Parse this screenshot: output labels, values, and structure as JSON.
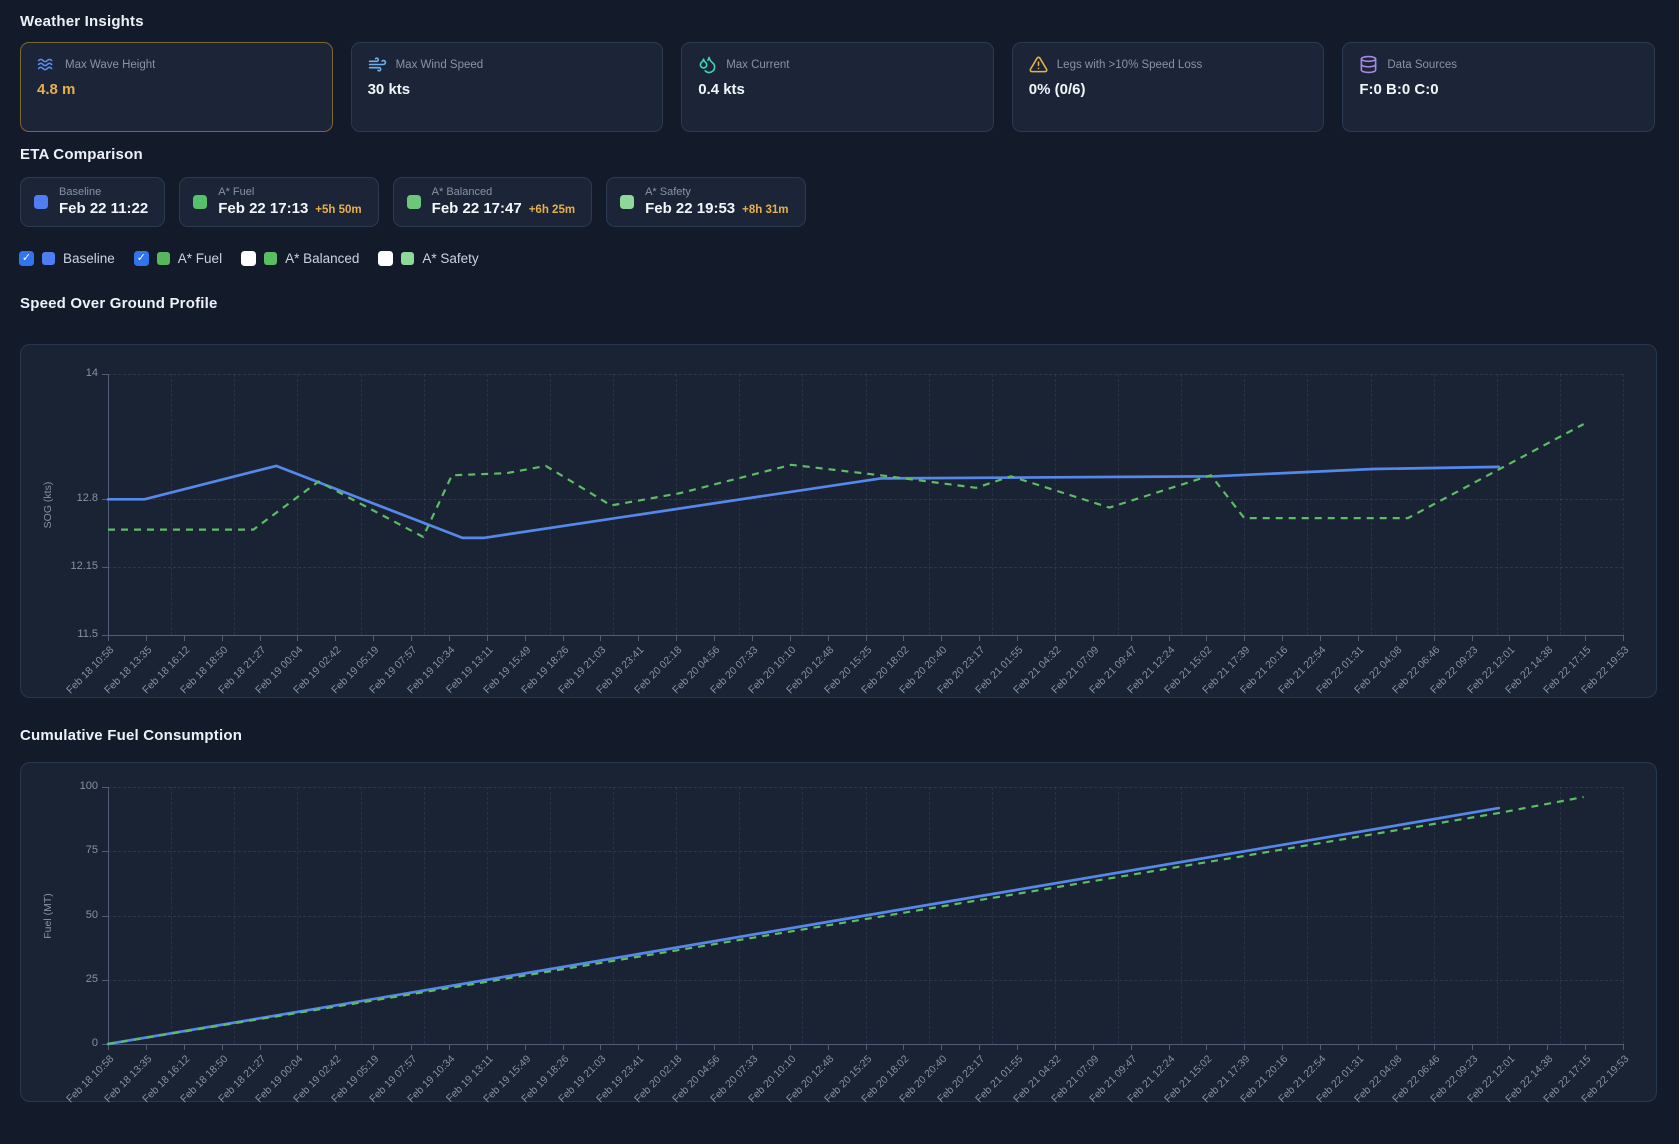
{
  "weather_insights": {
    "title": "Weather Insights",
    "cards": [
      {
        "icon": "waves-icon",
        "icon_color": "#5b8def",
        "label": "Max Wave Height",
        "value": "4.8 m",
        "accent": "#e7b04d",
        "accent_border": "#7d6731"
      },
      {
        "icon": "wind-icon",
        "icon_color": "#6cb2e8",
        "label": "Max Wind Speed",
        "value": "30 kts"
      },
      {
        "icon": "droplets-icon",
        "icon_color": "#3dd6b4",
        "label": "Max Current",
        "value": "0.4 kts"
      },
      {
        "icon": "warning-icon",
        "icon_color": "#e7b04d",
        "label": "Legs with >10% Speed Loss",
        "value": "0% (0/6)"
      },
      {
        "icon": "database-icon",
        "icon_color": "#a78be0",
        "label": "Data Sources",
        "value": "F:0 B:0 C:0"
      }
    ]
  },
  "eta_comparison": {
    "title": "ETA Comparison",
    "cards": [
      {
        "label": "Baseline",
        "value": "Feb 22 11:22",
        "delta": "",
        "swatch": "#4f7df2"
      },
      {
        "label": "A* Fuel",
        "value": "Feb 22 17:13",
        "delta": "+5h 50m",
        "swatch": "#56c06a"
      },
      {
        "label": "A* Balanced",
        "value": "Feb 22 17:47",
        "delta": "+6h 25m",
        "swatch": "#6cc878"
      },
      {
        "label": "A* Safety",
        "value": "Feb 22 19:53",
        "delta": "+8h 31m",
        "swatch": "#8ed89a"
      }
    ],
    "legend_toggles": [
      {
        "label": "Baseline",
        "checked": true,
        "swatch": "#4f7df2"
      },
      {
        "label": "A* Fuel",
        "checked": true,
        "swatch": "#56b75e"
      },
      {
        "label": "A* Balanced",
        "checked": false,
        "swatch": "#5abd62"
      },
      {
        "label": "A* Safety",
        "checked": false,
        "swatch": "#8ed89a"
      }
    ]
  },
  "chart_data": [
    {
      "type": "line",
      "title": "Speed Over Ground Profile",
      "xlabel": "",
      "ylabel": "SOG (kts)",
      "ylim": [
        11.5,
        14
      ],
      "yticks": [
        11.5,
        12.15,
        12.8,
        14
      ],
      "grid": true,
      "legend_position": "none",
      "x_encoding": "fraction of x-axis span (0 = Feb 18 10:58, 1 = Feb 22 19:53)",
      "x_tick_labels": [
        "Feb 18 10:58",
        "Feb 18 13:35",
        "Feb 18 16:12",
        "Feb 18 18:50",
        "Feb 18 21:27",
        "Feb 19 00:04",
        "Feb 19 02:42",
        "Feb 19 05:19",
        "Feb 19 07:57",
        "Feb 19 10:34",
        "Feb 19 13:11",
        "Feb 19 15:49",
        "Feb 19 18:26",
        "Feb 19 21:03",
        "Feb 19 23:41",
        "Feb 20 02:18",
        "Feb 20 04:56",
        "Feb 20 07:33",
        "Feb 20 10:10",
        "Feb 20 12:48",
        "Feb 20 15:25",
        "Feb 20 18:02",
        "Feb 20 20:40",
        "Feb 20 23:17",
        "Feb 21 01:55",
        "Feb 21 04:32",
        "Feb 21 07:09",
        "Feb 21 09:47",
        "Feb 21 12:24",
        "Feb 21 15:02",
        "Feb 21 17:39",
        "Feb 21 20:16",
        "Feb 21 22:54",
        "Feb 22 01:31",
        "Feb 22 04:08",
        "Feb 22 06:46",
        "Feb 22 09:23",
        "Feb 22 12:01",
        "Feb 22 14:38",
        "Feb 22 17:15",
        "Feb 22 19:53"
      ],
      "series": [
        {
          "name": "Baseline",
          "color": "#5688ea",
          "dash": false,
          "points": [
            [
              0,
              12.8
            ],
            [
              0.024,
              12.8
            ],
            [
              0.111,
              13.12
            ],
            [
              0.234,
              12.43
            ],
            [
              0.248,
              12.43
            ],
            [
              0.51,
              13.0
            ],
            [
              0.73,
              13.02
            ],
            [
              0.835,
              13.09
            ],
            [
              0.918,
              13.11
            ]
          ]
        },
        {
          "name": "A* Fuel",
          "color": "#5dbd65",
          "dash": true,
          "points": [
            [
              0,
              12.51
            ],
            [
              0.096,
              12.51
            ],
            [
              0.139,
              12.97
            ],
            [
              0.208,
              12.44
            ],
            [
              0.227,
              13.03
            ],
            [
              0.263,
              13.05
            ],
            [
              0.289,
              13.12
            ],
            [
              0.332,
              12.74
            ],
            [
              0.378,
              12.86
            ],
            [
              0.451,
              13.13
            ],
            [
              0.51,
              13.03
            ],
            [
              0.573,
              12.91
            ],
            [
              0.596,
              13.02
            ],
            [
              0.661,
              12.72
            ],
            [
              0.728,
              13.03
            ],
            [
              0.75,
              12.62
            ],
            [
              0.858,
              12.62
            ],
            [
              0.974,
              13.52
            ]
          ]
        }
      ]
    },
    {
      "type": "line",
      "title": "Cumulative Fuel Consumption",
      "xlabel": "",
      "ylabel": "Fuel (MT)",
      "ylim": [
        0,
        100
      ],
      "yticks": [
        0,
        25,
        50,
        75,
        100
      ],
      "grid": true,
      "legend_position": "none",
      "x_encoding": "fraction of x-axis span (0 = Feb 18 10:58, 1 = Feb 22 19:53)",
      "x_tick_labels": [
        "Feb 18 10:58",
        "Feb 18 13:35",
        "Feb 18 16:12",
        "Feb 18 18:50",
        "Feb 18 21:27",
        "Feb 19 00:04",
        "Feb 19 02:42",
        "Feb 19 05:19",
        "Feb 19 07:57",
        "Feb 19 10:34",
        "Feb 19 13:11",
        "Feb 19 15:49",
        "Feb 19 18:26",
        "Feb 19 21:03",
        "Feb 19 23:41",
        "Feb 20 02:18",
        "Feb 20 04:56",
        "Feb 20 07:33",
        "Feb 20 10:10",
        "Feb 20 12:48",
        "Feb 20 15:25",
        "Feb 20 18:02",
        "Feb 20 20:40",
        "Feb 20 23:17",
        "Feb 21 01:55",
        "Feb 21 04:32",
        "Feb 21 07:09",
        "Feb 21 09:47",
        "Feb 21 12:24",
        "Feb 21 15:02",
        "Feb 21 17:39",
        "Feb 21 20:16",
        "Feb 21 22:54",
        "Feb 22 01:31",
        "Feb 22 04:08",
        "Feb 22 06:46",
        "Feb 22 09:23",
        "Feb 22 12:01",
        "Feb 22 14:38",
        "Feb 22 17:15",
        "Feb 22 19:53"
      ],
      "series": [
        {
          "name": "Baseline",
          "color": "#5688ea",
          "dash": false,
          "points": [
            [
              0,
              0
            ],
            [
              0.25,
              25
            ],
            [
              0.5,
              50
            ],
            [
              0.75,
              75
            ],
            [
              0.918,
              91.8
            ]
          ]
        },
        {
          "name": "A* Fuel",
          "color": "#5dbd65",
          "dash": true,
          "points": [
            [
              0,
              0
            ],
            [
              0.25,
              24.2
            ],
            [
              0.5,
              48.6
            ],
            [
              0.75,
              73.2
            ],
            [
              0.918,
              89.9
            ],
            [
              0.974,
              96.1
            ]
          ]
        }
      ]
    }
  ]
}
